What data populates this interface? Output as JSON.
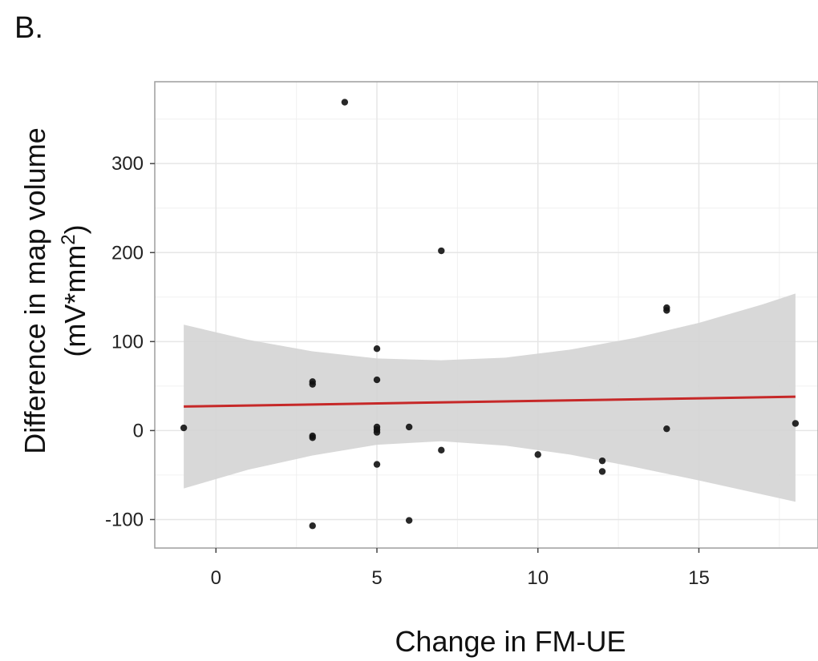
{
  "panel_label": "B.",
  "chart_data": {
    "type": "scatter",
    "title": "",
    "xlabel": "Change in FM-UE",
    "ylabel_line1": "Difference in map volume",
    "ylabel_line2_prefix": "(mV*mm",
    "ylabel_line2_sup": "2",
    "ylabel_line2_suffix": ")",
    "xlim": [
      -1.9,
      18.7
    ],
    "ylim": [
      -132,
      392
    ],
    "x_ticks": [
      0,
      5,
      10,
      15
    ],
    "x_tick_labels": [
      "0",
      "5",
      "10",
      "15"
    ],
    "y_ticks": [
      -100,
      0,
      100,
      200,
      300
    ],
    "y_tick_labels": [
      "-100",
      "0",
      "100",
      "200",
      "300"
    ],
    "grid": true,
    "colors": {
      "points": "#111111",
      "fit_line": "#c62828",
      "confidence_band": "#d4d4d4",
      "grid": "#e6e6e6",
      "panel_border": "#9e9e9e"
    },
    "points": [
      {
        "x": -1,
        "y": 3
      },
      {
        "x": 3,
        "y": 55
      },
      {
        "x": 3,
        "y": 52
      },
      {
        "x": 3,
        "y": -6
      },
      {
        "x": 3,
        "y": -8
      },
      {
        "x": 3,
        "y": -107
      },
      {
        "x": 4,
        "y": 369
      },
      {
        "x": 5,
        "y": 92
      },
      {
        "x": 5,
        "y": 57
      },
      {
        "x": 5,
        "y": 4
      },
      {
        "x": 5,
        "y": 1
      },
      {
        "x": 5,
        "y": -2
      },
      {
        "x": 5,
        "y": -38
      },
      {
        "x": 6,
        "y": 4
      },
      {
        "x": 6,
        "y": -101
      },
      {
        "x": 7,
        "y": 202
      },
      {
        "x": 7,
        "y": -22
      },
      {
        "x": 10,
        "y": -27
      },
      {
        "x": 12,
        "y": -34
      },
      {
        "x": 12,
        "y": -46
      },
      {
        "x": 14,
        "y": 138
      },
      {
        "x": 14,
        "y": 135
      },
      {
        "x": 14,
        "y": 2
      },
      {
        "x": 18,
        "y": 8
      }
    ],
    "fit_line": {
      "x": [
        -1,
        18
      ],
      "y": [
        27,
        38
      ]
    },
    "confidence_band": {
      "x": [
        -1,
        1,
        3,
        5,
        7,
        9,
        11,
        13,
        15,
        17,
        18
      ],
      "upper": [
        119,
        102,
        89,
        81,
        79,
        82,
        91,
        104,
        121,
        142,
        154
      ],
      "lower": [
        -65,
        -44,
        -28,
        -16,
        -12,
        -17,
        -27,
        -41,
        -56,
        -72,
        -80
      ]
    }
  }
}
